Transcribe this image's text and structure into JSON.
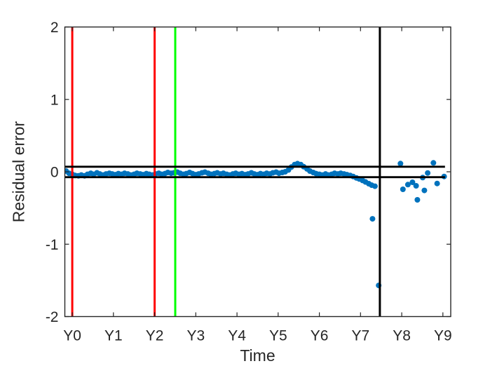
{
  "figure": {
    "background": "#ffffff",
    "axis_color": "#262626",
    "text_color": "#262626"
  },
  "chart_data": {
    "type": "scatter",
    "title": "",
    "xlabel": "Time",
    "ylabel": "Residual error",
    "xlim": [
      -0.18,
      9.19
    ],
    "ylim": [
      -2,
      2
    ],
    "grid": false,
    "legend": null,
    "marker": {
      "color": "#0072BD",
      "radius": 4
    },
    "x_ticks": [
      {
        "value": 0,
        "label": "Y0"
      },
      {
        "value": 1,
        "label": "Y1"
      },
      {
        "value": 2,
        "label": "Y2"
      },
      {
        "value": 3,
        "label": "Y3"
      },
      {
        "value": 4,
        "label": "Y4"
      },
      {
        "value": 5,
        "label": "Y5"
      },
      {
        "value": 6,
        "label": "Y6"
      },
      {
        "value": 7,
        "label": "Y7"
      },
      {
        "value": 8,
        "label": "Y8"
      },
      {
        "value": 9,
        "label": "Y9"
      }
    ],
    "y_ticks": [
      {
        "value": -2,
        "label": "-2"
      },
      {
        "value": -1,
        "label": "-1"
      },
      {
        "value": 0,
        "label": "0"
      },
      {
        "value": 1,
        "label": "1"
      },
      {
        "value": 2,
        "label": "2"
      }
    ],
    "vlines": [
      {
        "name": "event-line-red-y0",
        "x": 0,
        "color": "#FF0000"
      },
      {
        "name": "event-line-red-y2",
        "x": 2,
        "color": "#FF0000"
      },
      {
        "name": "event-line-green-y2p5",
        "x": 2.5,
        "color": "#00FF00"
      },
      {
        "name": "event-line-black-y7p5",
        "x": 7.47,
        "color": "#000000"
      }
    ],
    "hlines": [
      {
        "name": "threshold-line-upper",
        "y": 0.07,
        "x0": -0.18,
        "x1": 9.05,
        "color": "#000000"
      },
      {
        "name": "threshold-line-lower",
        "y": -0.075,
        "x0": -0.18,
        "x1": 9.05,
        "color": "#000000"
      }
    ],
    "series": [
      {
        "name": "residuals",
        "points": [
          [
            -0.15,
            0.01
          ],
          [
            -0.08,
            -0.02
          ],
          [
            0,
            -0.035
          ],
          [
            0.07,
            -0.05
          ],
          [
            0.15,
            -0.055
          ],
          [
            0.22,
            -0.045
          ],
          [
            0.3,
            -0.055
          ],
          [
            0.37,
            -0.035
          ],
          [
            0.45,
            -0.02
          ],
          [
            0.52,
            -0.035
          ],
          [
            0.6,
            -0.015
          ],
          [
            0.67,
            -0.03
          ],
          [
            0.75,
            -0.045
          ],
          [
            0.82,
            -0.03
          ],
          [
            0.9,
            -0.02
          ],
          [
            0.97,
            -0.03
          ],
          [
            1.05,
            -0.04
          ],
          [
            1.12,
            -0.025
          ],
          [
            1.2,
            -0.035
          ],
          [
            1.27,
            -0.02
          ],
          [
            1.35,
            -0.03
          ],
          [
            1.42,
            -0.045
          ],
          [
            1.5,
            -0.035
          ],
          [
            1.57,
            -0.02
          ],
          [
            1.65,
            -0.03
          ],
          [
            1.72,
            -0.04
          ],
          [
            1.8,
            -0.025
          ],
          [
            1.87,
            -0.035
          ],
          [
            1.95,
            -0.045
          ],
          [
            2.02,
            -0.03
          ],
          [
            2.1,
            -0.02
          ],
          [
            2.17,
            -0.035
          ],
          [
            2.25,
            -0.025
          ],
          [
            2.32,
            -0.01
          ],
          [
            2.4,
            -0.02
          ],
          [
            2.47,
            -0.015
          ],
          [
            2.55,
            -0.005
          ],
          [
            2.62,
            -0.02
          ],
          [
            2.7,
            -0.035
          ],
          [
            2.77,
            -0.025
          ],
          [
            2.85,
            -0.01
          ],
          [
            2.92,
            -0.025
          ],
          [
            3,
            -0.04
          ],
          [
            3.07,
            -0.03
          ],
          [
            3.15,
            -0.015
          ],
          [
            3.22,
            -0.005
          ],
          [
            3.3,
            -0.02
          ],
          [
            3.37,
            -0.035
          ],
          [
            3.45,
            -0.025
          ],
          [
            3.52,
            -0.015
          ],
          [
            3.6,
            -0.03
          ],
          [
            3.67,
            -0.02
          ],
          [
            3.75,
            -0.035
          ],
          [
            3.82,
            -0.045
          ],
          [
            3.9,
            -0.03
          ],
          [
            3.97,
            -0.02
          ],
          [
            4.05,
            -0.035
          ],
          [
            4.12,
            -0.025
          ],
          [
            4.2,
            -0.04
          ],
          [
            4.27,
            -0.03
          ],
          [
            4.35,
            -0.015
          ],
          [
            4.42,
            -0.03
          ],
          [
            4.5,
            -0.04
          ],
          [
            4.57,
            -0.025
          ],
          [
            4.65,
            -0.035
          ],
          [
            4.72,
            -0.02
          ],
          [
            4.8,
            -0.03
          ],
          [
            4.87,
            -0.015
          ],
          [
            4.95,
            -0.005
          ],
          [
            5.02,
            -0.02
          ],
          [
            5.1,
            -0.01
          ],
          [
            5.17,
            0
          ],
          [
            5.25,
            0.025
          ],
          [
            5.32,
            0.065
          ],
          [
            5.4,
            0.1
          ],
          [
            5.47,
            0.112
          ],
          [
            5.55,
            0.1
          ],
          [
            5.62,
            0.07
          ],
          [
            5.7,
            0.04
          ],
          [
            5.77,
            0.01
          ],
          [
            5.85,
            -0.01
          ],
          [
            5.92,
            -0.025
          ],
          [
            6,
            -0.035
          ],
          [
            6.07,
            -0.045
          ],
          [
            6.15,
            -0.03
          ],
          [
            6.22,
            -0.045
          ],
          [
            6.3,
            -0.035
          ],
          [
            6.37,
            -0.02
          ],
          [
            6.45,
            -0.03
          ],
          [
            6.52,
            -0.02
          ],
          [
            6.6,
            -0.03
          ],
          [
            6.67,
            -0.04
          ],
          [
            6.75,
            -0.05
          ],
          [
            6.82,
            -0.065
          ],
          [
            6.9,
            -0.085
          ],
          [
            6.97,
            -0.1
          ],
          [
            7.05,
            -0.12
          ],
          [
            7.12,
            -0.14
          ],
          [
            7.2,
            -0.165
          ],
          [
            7.27,
            -0.185
          ],
          [
            7.29,
            -0.65
          ],
          [
            7.35,
            -0.2
          ],
          [
            7.44,
            -1.57
          ],
          [
            7.97,
            0.113
          ],
          [
            8.03,
            -0.242
          ],
          [
            8.15,
            -0.177
          ],
          [
            8.26,
            -0.145
          ],
          [
            8.35,
            -0.194
          ],
          [
            8.38,
            -0.387
          ],
          [
            8.51,
            -0.08
          ],
          [
            8.55,
            -0.258
          ],
          [
            8.63,
            -0.016
          ],
          [
            8.77,
            0.123
          ],
          [
            8.86,
            -0.162
          ],
          [
            9.03,
            -0.065
          ]
        ]
      }
    ]
  }
}
